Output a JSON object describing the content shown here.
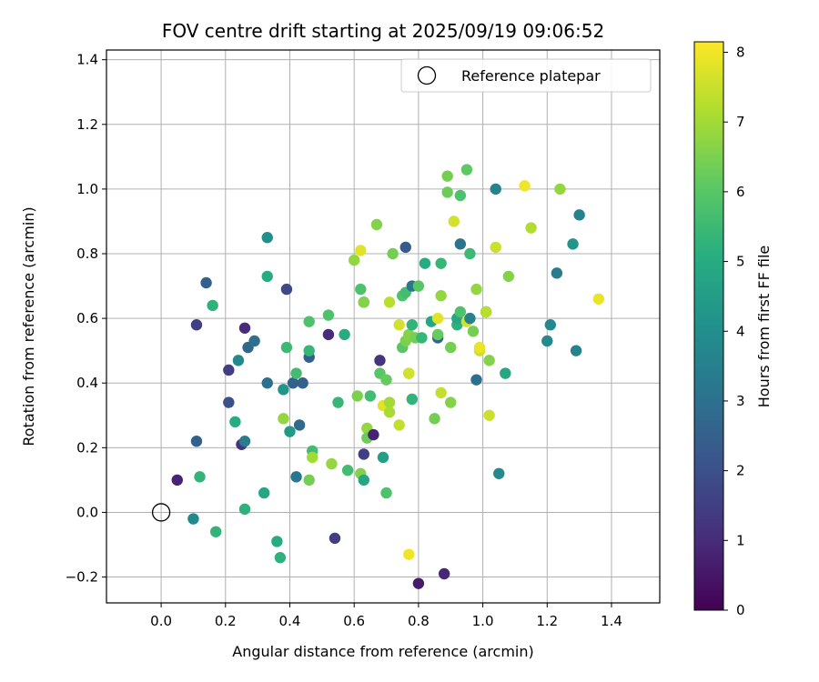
{
  "chart_data": {
    "type": "scatter",
    "title": "FOV centre drift starting at 2025/09/19 09:06:52",
    "xlabel": "Angular distance from reference (arcmin)",
    "ylabel": "Rotation from reference (arcmin)",
    "colorbar_label": "Hours from first FF file",
    "xlim": [
      -0.17,
      1.55
    ],
    "ylim": [
      -0.28,
      1.43
    ],
    "x_ticks": [
      0.0,
      0.2,
      0.4,
      0.6,
      0.8,
      1.0,
      1.2,
      1.4
    ],
    "x_tick_labels": [
      "0.0",
      "0.2",
      "0.4",
      "0.6",
      "0.8",
      "1.0",
      "1.2",
      "1.4"
    ],
    "y_ticks": [
      -0.2,
      0.0,
      0.2,
      0.4,
      0.6,
      0.8,
      1.0,
      1.2,
      1.4
    ],
    "y_tick_labels": [
      "−0.2",
      "0.0",
      "0.2",
      "0.4",
      "0.6",
      "0.8",
      "1.0",
      "1.2",
      "1.4"
    ],
    "colorbar_range": [
      0,
      8.15
    ],
    "colorbar_ticks": [
      0,
      1,
      2,
      3,
      4,
      5,
      6,
      7,
      8
    ],
    "colorbar_tick_labels": [
      "0",
      "1",
      "2",
      "3",
      "4",
      "5",
      "6",
      "7",
      "8"
    ],
    "grid": true,
    "legend": {
      "position": "top-right",
      "entries": [
        {
          "label": "Reference platepar",
          "marker": "open-circle"
        }
      ]
    },
    "reference_point": {
      "x": 0.0,
      "y": 0.0
    },
    "colormap": "viridis",
    "points": [
      [
        0.05,
        0.1,
        0.8
      ],
      [
        0.1,
        -0.02,
        3.8
      ],
      [
        0.11,
        0.22,
        2.5
      ],
      [
        0.11,
        0.58,
        1.5
      ],
      [
        0.12,
        0.11,
        5.3
      ],
      [
        0.14,
        0.71,
        2.5
      ],
      [
        0.16,
        0.64,
        5.2
      ],
      [
        0.17,
        -0.06,
        5.3
      ],
      [
        0.21,
        0.34,
        2.0
      ],
      [
        0.21,
        0.44,
        1.5
      ],
      [
        0.23,
        0.28,
        5.0
      ],
      [
        0.24,
        0.47,
        3.8
      ],
      [
        0.25,
        0.21,
        1.2
      ],
      [
        0.26,
        0.22,
        3.4
      ],
      [
        0.26,
        0.01,
        5.2
      ],
      [
        0.26,
        0.57,
        1.0
      ],
      [
        0.27,
        0.51,
        2.7
      ],
      [
        0.29,
        0.53,
        3.0
      ],
      [
        0.32,
        0.06,
        4.8
      ],
      [
        0.33,
        0.85,
        4.0
      ],
      [
        0.33,
        0.73,
        5.0
      ],
      [
        0.33,
        0.4,
        3.0
      ],
      [
        0.36,
        -0.09,
        5.0
      ],
      [
        0.37,
        -0.14,
        5.2
      ],
      [
        0.38,
        0.38,
        4.2
      ],
      [
        0.38,
        0.29,
        6.8
      ],
      [
        0.39,
        0.69,
        1.8
      ],
      [
        0.39,
        0.51,
        5.5
      ],
      [
        0.4,
        0.25,
        4.4
      ],
      [
        0.41,
        0.4,
        2.5
      ],
      [
        0.42,
        0.11,
        3.2
      ],
      [
        0.42,
        0.43,
        5.6
      ],
      [
        0.43,
        0.27,
        2.8
      ],
      [
        0.44,
        0.4,
        2.5
      ],
      [
        0.46,
        0.59,
        5.8
      ],
      [
        0.46,
        0.48,
        2.5
      ],
      [
        0.46,
        0.5,
        5.4
      ],
      [
        0.46,
        0.1,
        6.4
      ],
      [
        0.47,
        0.19,
        5.6
      ],
      [
        0.47,
        0.17,
        7.0
      ],
      [
        0.52,
        0.61,
        5.8
      ],
      [
        0.52,
        0.55,
        1.0
      ],
      [
        0.53,
        0.15,
        6.8
      ],
      [
        0.54,
        -0.08,
        1.5
      ],
      [
        0.55,
        0.34,
        5.4
      ],
      [
        0.57,
        0.55,
        5.0
      ],
      [
        0.58,
        0.13,
        5.6
      ],
      [
        0.6,
        0.78,
        6.8
      ],
      [
        0.61,
        0.36,
        6.5
      ],
      [
        0.62,
        0.81,
        7.8
      ],
      [
        0.62,
        0.69,
        5.8
      ],
      [
        0.62,
        0.12,
        6.6
      ],
      [
        0.63,
        0.18,
        1.5
      ],
      [
        0.63,
        0.65,
        4.8
      ],
      [
        0.63,
        0.65,
        6.6
      ],
      [
        0.63,
        0.1,
        4.8
      ],
      [
        0.64,
        0.26,
        6.8
      ],
      [
        0.64,
        0.23,
        6.3
      ],
      [
        0.65,
        0.36,
        5.6
      ],
      [
        0.66,
        0.24,
        0.8
      ],
      [
        0.67,
        0.89,
        6.6
      ],
      [
        0.68,
        0.47,
        1.2
      ],
      [
        0.68,
        0.43,
        6.0
      ],
      [
        0.69,
        0.33,
        7.8
      ],
      [
        0.69,
        0.17,
        4.6
      ],
      [
        0.7,
        0.41,
        6.2
      ],
      [
        0.7,
        0.06,
        5.8
      ],
      [
        0.71,
        0.34,
        7.0
      ],
      [
        0.71,
        0.31,
        7.1
      ],
      [
        0.71,
        0.65,
        7.3
      ],
      [
        0.72,
        0.8,
        6.4
      ],
      [
        0.74,
        0.27,
        7.4
      ],
      [
        0.74,
        0.58,
        7.6
      ],
      [
        0.75,
        0.51,
        6.0
      ],
      [
        0.75,
        0.67,
        5.8
      ],
      [
        0.76,
        0.53,
        6.5
      ],
      [
        0.76,
        0.82,
        2.3
      ],
      [
        0.76,
        0.68,
        5.6
      ],
      [
        0.77,
        0.43,
        6.0
      ],
      [
        0.77,
        -0.13,
        8.0
      ],
      [
        0.77,
        0.43,
        7.6
      ],
      [
        0.77,
        0.55,
        6.6
      ],
      [
        0.78,
        0.35,
        5.3
      ],
      [
        0.78,
        0.58,
        5.3
      ],
      [
        0.78,
        0.7,
        3.2
      ],
      [
        0.79,
        0.54,
        6.4
      ],
      [
        0.8,
        -0.22,
        0.6
      ],
      [
        0.8,
        0.7,
        6.0
      ],
      [
        0.81,
        0.54,
        5.4
      ],
      [
        0.82,
        0.77,
        5.0
      ],
      [
        0.84,
        0.59,
        4.8
      ],
      [
        0.85,
        0.29,
        6.4
      ],
      [
        0.86,
        0.54,
        2.6
      ],
      [
        0.86,
        0.6,
        7.8
      ],
      [
        0.86,
        0.55,
        6.2
      ],
      [
        0.87,
        0.77,
        5.4
      ],
      [
        0.87,
        0.67,
        6.8
      ],
      [
        0.87,
        0.37,
        7.4
      ],
      [
        0.88,
        -0.19,
        0.9
      ],
      [
        0.89,
        1.04,
        6.4
      ],
      [
        0.89,
        0.99,
        6.3
      ],
      [
        0.9,
        0.51,
        6.4
      ],
      [
        0.9,
        0.34,
        6.6
      ],
      [
        0.91,
        0.9,
        7.6
      ],
      [
        0.92,
        0.58,
        5.2
      ],
      [
        0.92,
        0.6,
        4.8
      ],
      [
        0.93,
        0.98,
        5.8
      ],
      [
        0.93,
        0.83,
        3.1
      ],
      [
        0.93,
        0.62,
        5.8
      ],
      [
        0.95,
        0.59,
        7.6
      ],
      [
        0.95,
        1.06,
        6.1
      ],
      [
        0.96,
        0.6,
        3.5
      ],
      [
        0.96,
        0.8,
        5.5
      ],
      [
        0.97,
        0.56,
        6.4
      ],
      [
        0.98,
        0.69,
        6.8
      ],
      [
        0.98,
        0.41,
        3.0
      ],
      [
        0.99,
        0.5,
        7.5
      ],
      [
        0.99,
        0.51,
        7.9
      ],
      [
        1.01,
        0.62,
        3.3
      ],
      [
        1.01,
        0.62,
        7.3
      ],
      [
        1.02,
        0.3,
        7.5
      ],
      [
        1.02,
        0.47,
        6.6
      ],
      [
        1.04,
        1.0,
        3.6
      ],
      [
        1.04,
        0.82,
        7.5
      ],
      [
        1.05,
        0.12,
        3.8
      ],
      [
        1.07,
        0.43,
        4.8
      ],
      [
        1.08,
        0.73,
        6.6
      ],
      [
        1.13,
        1.01,
        8.0
      ],
      [
        1.15,
        0.88,
        7.2
      ],
      [
        1.2,
        0.53,
        3.8
      ],
      [
        1.21,
        0.58,
        3.8
      ],
      [
        1.23,
        0.74,
        3.4
      ],
      [
        1.24,
        1.0,
        6.8
      ],
      [
        1.28,
        0.83,
        4.2
      ],
      [
        1.29,
        0.5,
        3.6
      ],
      [
        1.3,
        0.92,
        3.6
      ],
      [
        1.36,
        0.66,
        7.9
      ]
    ]
  }
}
